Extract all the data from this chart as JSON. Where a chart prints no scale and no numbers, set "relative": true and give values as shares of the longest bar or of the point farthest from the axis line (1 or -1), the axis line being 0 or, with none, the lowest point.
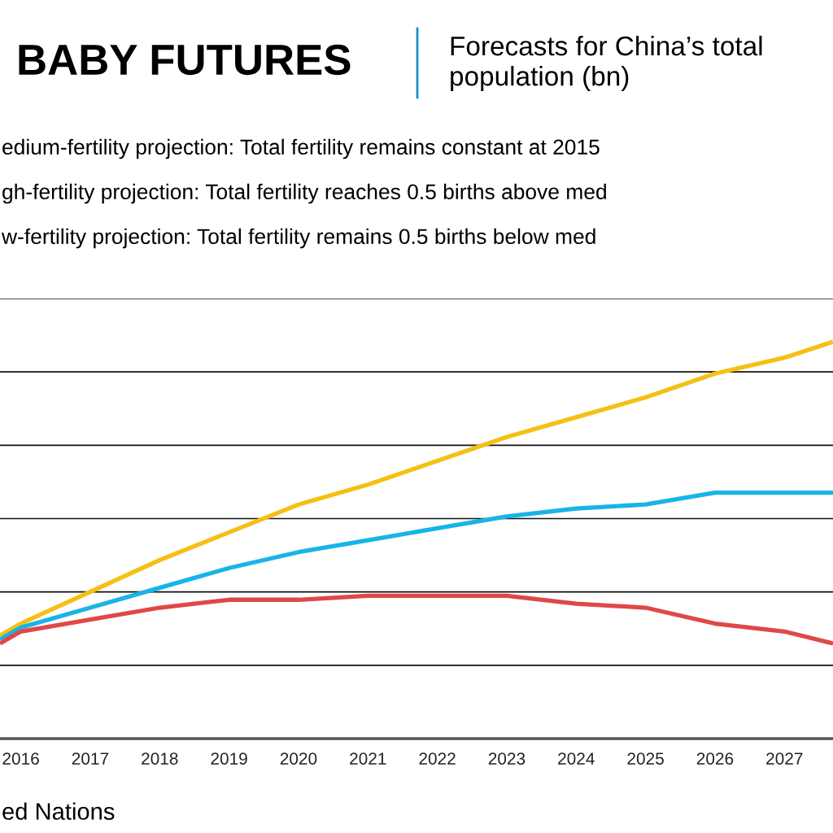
{
  "chart_data": {
    "type": "line",
    "title": "BABY FUTURES",
    "subtitle": "Forecasts for China’s total\npopulation (bn)",
    "annotations": [
      "edium-fertility projection: Total fertility remains constant at 2015",
      "gh-fertility projection: Total fertility reaches 0.5 births above med",
      "w-fertility projection: Total fertility remains 0.5 births below med",
      "ed Nations"
    ],
    "x": [
      2015.7,
      2016,
      2017,
      2018,
      2019,
      2020,
      2021,
      2022,
      2023,
      2024,
      2025,
      2026,
      2027,
      2027.7
    ],
    "relative": true,
    "series": [
      {
        "color": "#f5c014",
        "values": [
          0.26,
          0.29,
          0.37,
          0.45,
          0.52,
          0.59,
          0.64,
          0.7,
          0.76,
          0.81,
          0.86,
          0.92,
          0.96,
          1.0
        ]
      },
      {
        "color": "#18b4e8",
        "values": [
          0.25,
          0.28,
          0.33,
          0.38,
          0.43,
          0.47,
          0.5,
          0.53,
          0.56,
          0.58,
          0.59,
          0.62,
          0.62,
          0.62
        ]
      },
      {
        "color": "#e04848",
        "values": [
          0.24,
          0.27,
          0.3,
          0.33,
          0.35,
          0.35,
          0.36,
          0.36,
          0.36,
          0.34,
          0.33,
          0.29,
          0.27,
          0.24
        ]
      }
    ],
    "xlim": [
      2015.7,
      2027.7
    ],
    "xticks": [
      2016,
      2017,
      2018,
      2019,
      2020,
      2021,
      2022,
      2023,
      2024,
      2025,
      2026,
      2027
    ],
    "grid": "y",
    "legend": false,
    "marker": "none",
    "line_style": "solid"
  }
}
